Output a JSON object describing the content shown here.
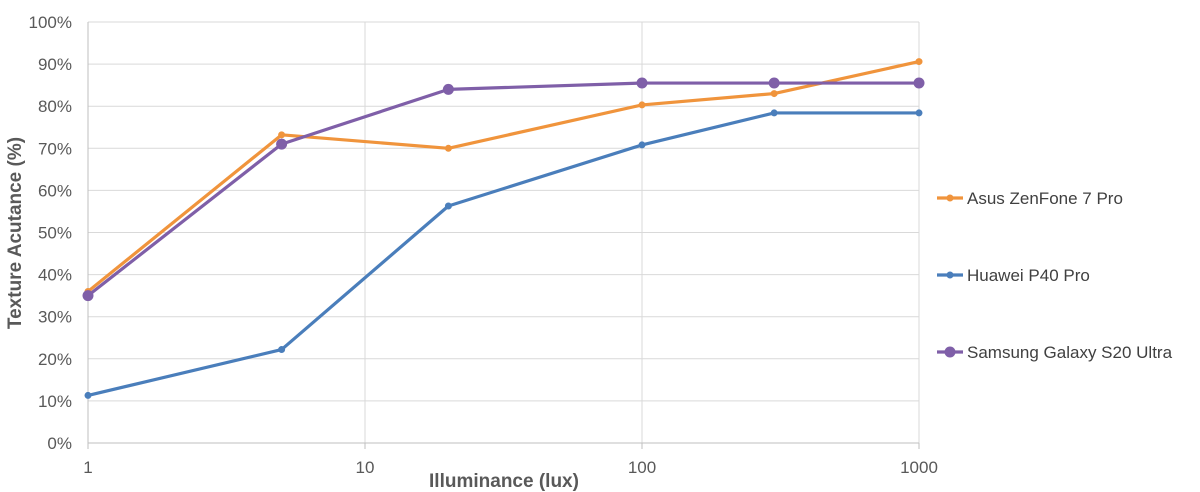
{
  "chart_data": {
    "type": "line",
    "title": "",
    "xlabel": "Illuminance (lux)",
    "ylabel": "Texture Acutance (%)",
    "xscale": "log",
    "xlim": [
      1,
      1000
    ],
    "ylim": [
      0,
      100
    ],
    "x_ticks": [
      1,
      10,
      100,
      1000
    ],
    "x_tick_labels": [
      "1",
      "10",
      "100",
      "1000"
    ],
    "y_ticks": [
      0,
      10,
      20,
      30,
      40,
      50,
      60,
      70,
      80,
      90,
      100
    ],
    "y_tick_labels": [
      "0%",
      "10%",
      "20%",
      "30%",
      "40%",
      "50%",
      "60%",
      "70%",
      "80%",
      "90%",
      "100%"
    ],
    "grid": true,
    "legend_position": "right",
    "x": [
      1,
      5,
      20,
      100,
      300,
      1000
    ],
    "series": [
      {
        "name": "Asus ZenFone 7 Pro",
        "color": "#f0943c",
        "marker": "small-circle",
        "values": [
          36,
          73.2,
          70,
          80.3,
          83,
          90.6
        ]
      },
      {
        "name": "Huawei P40 Pro",
        "color": "#4a7ebb",
        "marker": "small-circle",
        "values": [
          11.3,
          22.2,
          56.3,
          70.8,
          78.4,
          78.4
        ]
      },
      {
        "name": "Samsung Galaxy S20 Ultra",
        "color": "#7f5fa8",
        "marker": "large-circle",
        "values": [
          35,
          71,
          84,
          85.5,
          85.5,
          85.5
        ]
      }
    ]
  }
}
